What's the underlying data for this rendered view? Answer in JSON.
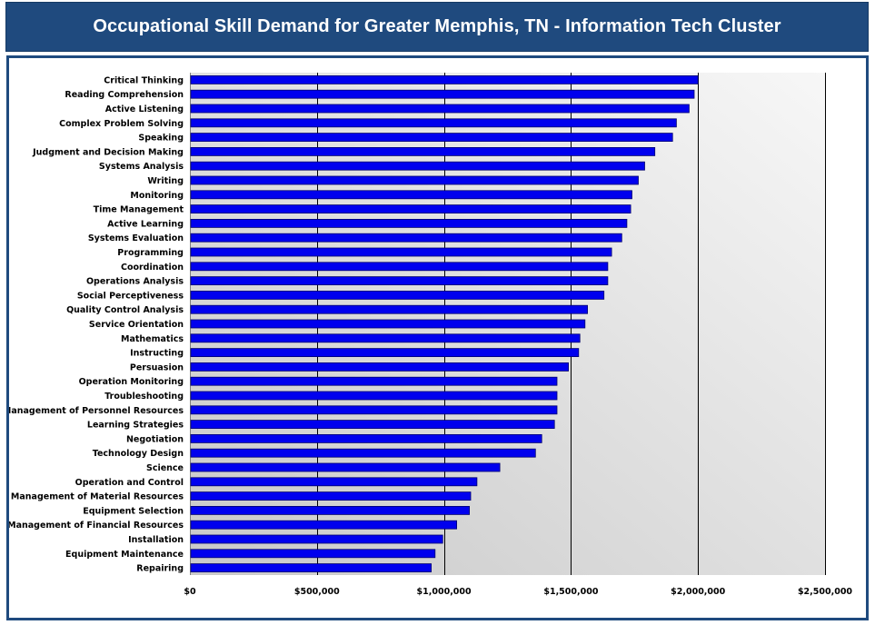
{
  "title": "Occupational Skill Demand for Greater Memphis, TN - Information Tech Cluster",
  "colors": {
    "header_bg": "#1f4a7e",
    "bar_fill": "#0000ee",
    "bar_stroke": "#00006e",
    "plot_bg_left": "#c9c9c9",
    "plot_bg_right": "#f7f7f7",
    "gridline": "#000000"
  },
  "chart_data": {
    "type": "bar",
    "orientation": "horizontal",
    "title": "Occupational Skill Demand for Greater Memphis, TN - Information Tech Cluster",
    "xlabel": "",
    "ylabel": "",
    "xlim": [
      0,
      2500000
    ],
    "x_ticks": [
      0,
      500000,
      1000000,
      1500000,
      2000000,
      2500000
    ],
    "x_tick_labels": [
      "$0",
      "$500,000",
      "$1,000,000",
      "$1,500,000",
      "$2,000,000",
      "$2,500,000"
    ],
    "grid": "vertical major gridlines",
    "legend": "none",
    "categories": [
      "Critical Thinking",
      "Reading Comprehension",
      "Active Listening",
      "Complex Problem Solving",
      "Speaking",
      "Judgment and Decision Making",
      "Systems Analysis",
      "Writing",
      "Monitoring",
      "Time Management",
      "Active Learning",
      "Systems Evaluation",
      "Programming",
      "Coordination",
      "Operations Analysis",
      "Social Perceptiveness",
      "Quality Control Analysis",
      "Service Orientation",
      "Mathematics",
      "Instructing",
      "Persuasion",
      "Operation Monitoring",
      "Troubleshooting",
      "Management of Personnel Resources",
      "Learning Strategies",
      "Negotiation",
      "Technology Design",
      "Science",
      "Operation and Control",
      "Management of Material Resources",
      "Equipment Selection",
      "Management of Financial Resources",
      "Installation",
      "Equipment Maintenance",
      "Repairing"
    ],
    "values": [
      2000000,
      1985000,
      1965000,
      1915000,
      1900000,
      1830000,
      1790000,
      1765000,
      1740000,
      1735000,
      1720000,
      1700000,
      1660000,
      1645000,
      1645000,
      1630000,
      1565000,
      1555000,
      1535000,
      1530000,
      1490000,
      1445000,
      1445000,
      1445000,
      1435000,
      1385000,
      1360000,
      1220000,
      1130000,
      1105000,
      1100000,
      1050000,
      995000,
      965000,
      950000
    ]
  }
}
